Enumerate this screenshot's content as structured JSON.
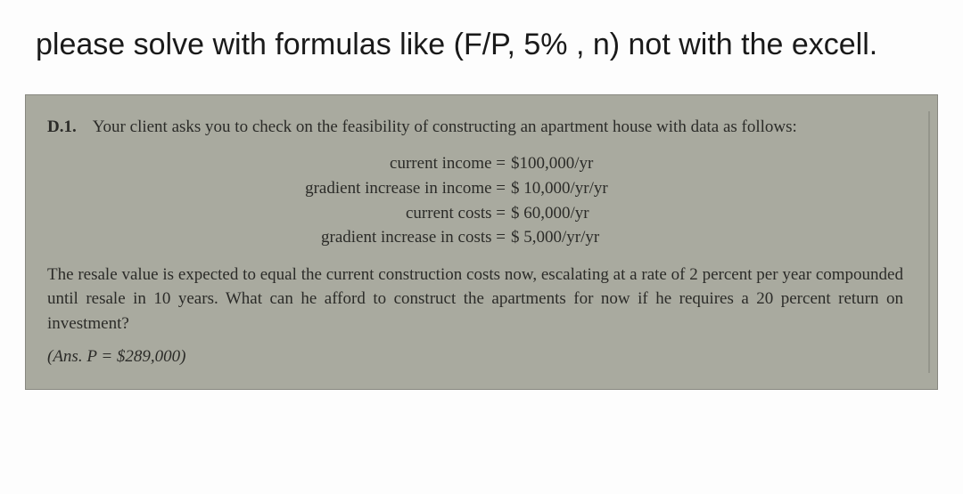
{
  "instruction": "please solve with formulas like (F/P, 5% , n) not with the excell.",
  "problem": {
    "number": "D.1.",
    "intro": "Your client asks you to check on the feasibility of constructing an apartment house with data as follows:",
    "data": [
      {
        "label": "current income =",
        "value": "$100,000/yr"
      },
      {
        "label": "gradient increase in income =",
        "value": "$  10,000/yr/yr"
      },
      {
        "label": "current costs =",
        "value": "$  60,000/yr"
      },
      {
        "label": "gradient increase in costs =",
        "value": "$    5,000/yr/yr"
      }
    ],
    "body": "The resale value is expected to equal the current construction costs now, escalating at a rate of 2 percent per year compounded until resale in 10 years. What can he afford to construct the apartments for now if he requires a 20 percent return on investment?",
    "answer": "(Ans.  P = $289,000)"
  },
  "colors": {
    "page_bg": "#fdfdfd",
    "panel_bg": "#a9aa9f",
    "panel_border": "#888880",
    "text_main": "#1a1a1a",
    "text_panel": "#2b2b28"
  }
}
